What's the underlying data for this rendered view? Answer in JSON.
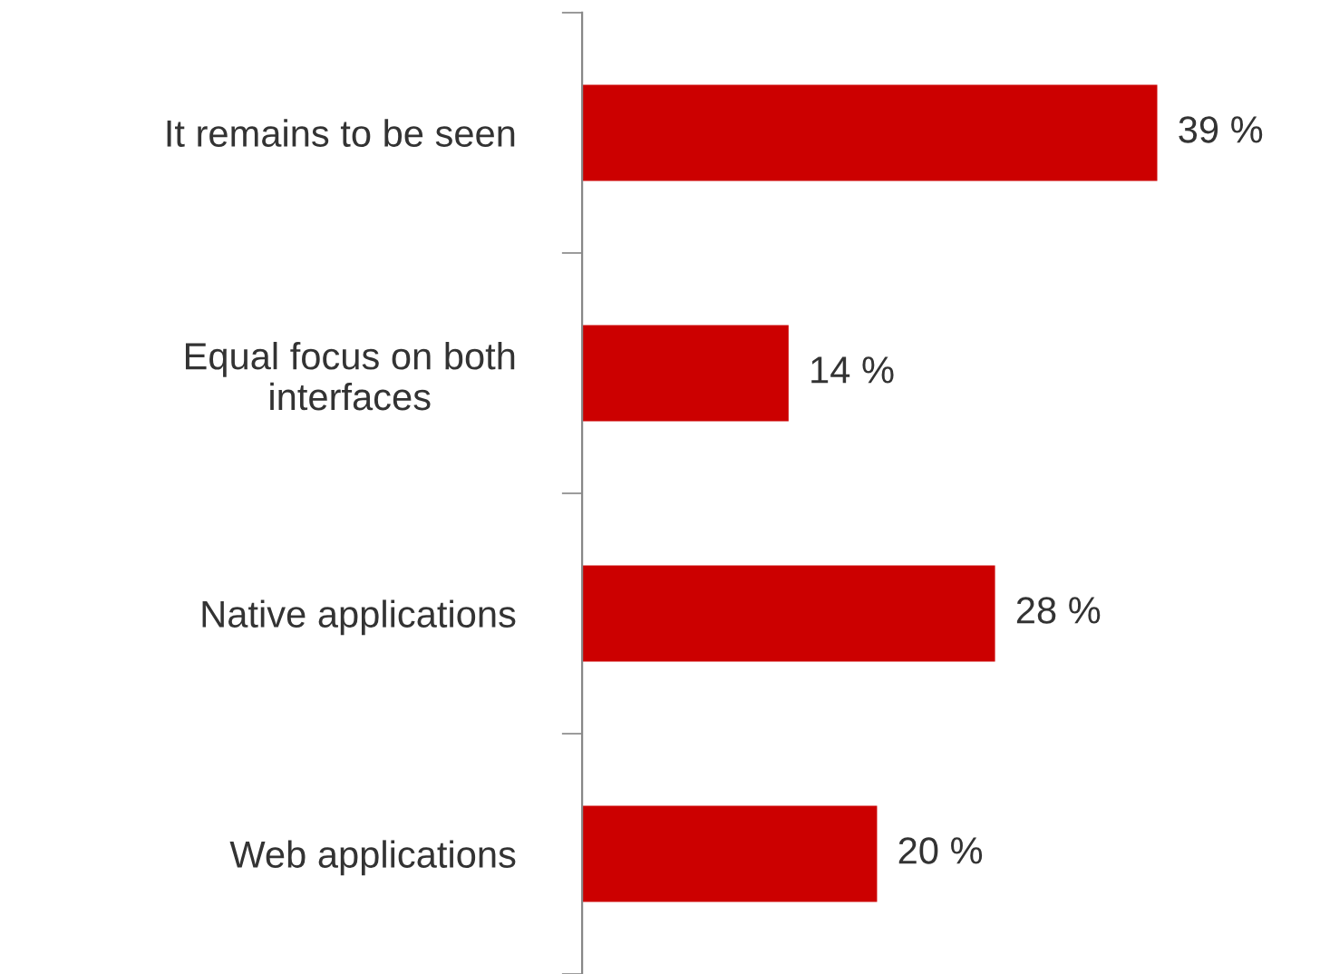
{
  "chart_data": {
    "type": "bar",
    "orientation": "horizontal",
    "categories": [
      "It remains to be seen",
      "Equal focus on both\ninterfaces",
      "Native applications",
      "Web applications"
    ],
    "values": [
      39,
      14,
      28,
      20
    ],
    "value_labels": [
      "39 %",
      "14 %",
      "28 %",
      "20 %"
    ],
    "color": "#cc0000",
    "grid": false,
    "legend": false
  }
}
